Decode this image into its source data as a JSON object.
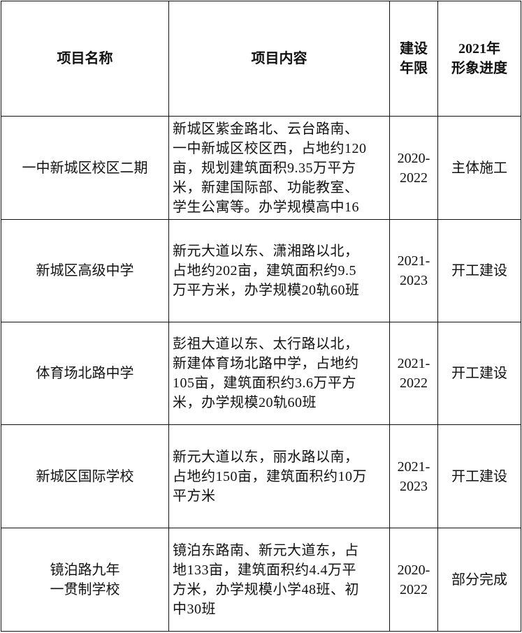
{
  "headers": [
    "项目名称",
    "项目内容",
    "建设\n年限",
    "2021年\n形象进度"
  ],
  "rows": [
    {
      "name": "一中新城区校区二期",
      "content": "新城区紫金路北、云台路南、\n一中新城区校区西，占地约120\n亩，规划建筑面积9.35万平方\n米，新建国际部、功能教室、\n学生公寓等。办学规模高中16",
      "years": "2020-\n2022",
      "progress": "主体施工"
    },
    {
      "name": "新城区高级中学",
      "content": "新元大道以东、潇湘路以北，\n占地约202亩，建筑面积约9.5\n万平方米，办学规模20轨60班",
      "years": "2021-\n2023",
      "progress": "开工建设"
    },
    {
      "name": "体育场北路中学",
      "content": "彭祖大道以东、太行路以北，\n新建体育场北路中学，占地约\n105亩，建筑面积约3.6万平方\n米，办学规模20轨60班",
      "years": "2021-\n2022",
      "progress": "开工建设"
    },
    {
      "name": "新城区国际学校",
      "content": "新元大道以东，丽水路以南，\n占地约150亩，建筑面积约10万\n平方米",
      "years": "2021-\n2023",
      "progress": "开工建设"
    },
    {
      "name": "镜泊路九年\n一贯制学校",
      "content": "镜泊东路南、新元大道东，占\n地133亩，建筑面积约4.4万平\n方米，办学规模小学48班、初\n中30班",
      "years": "2020-\n2022",
      "progress": "部分完成"
    }
  ]
}
